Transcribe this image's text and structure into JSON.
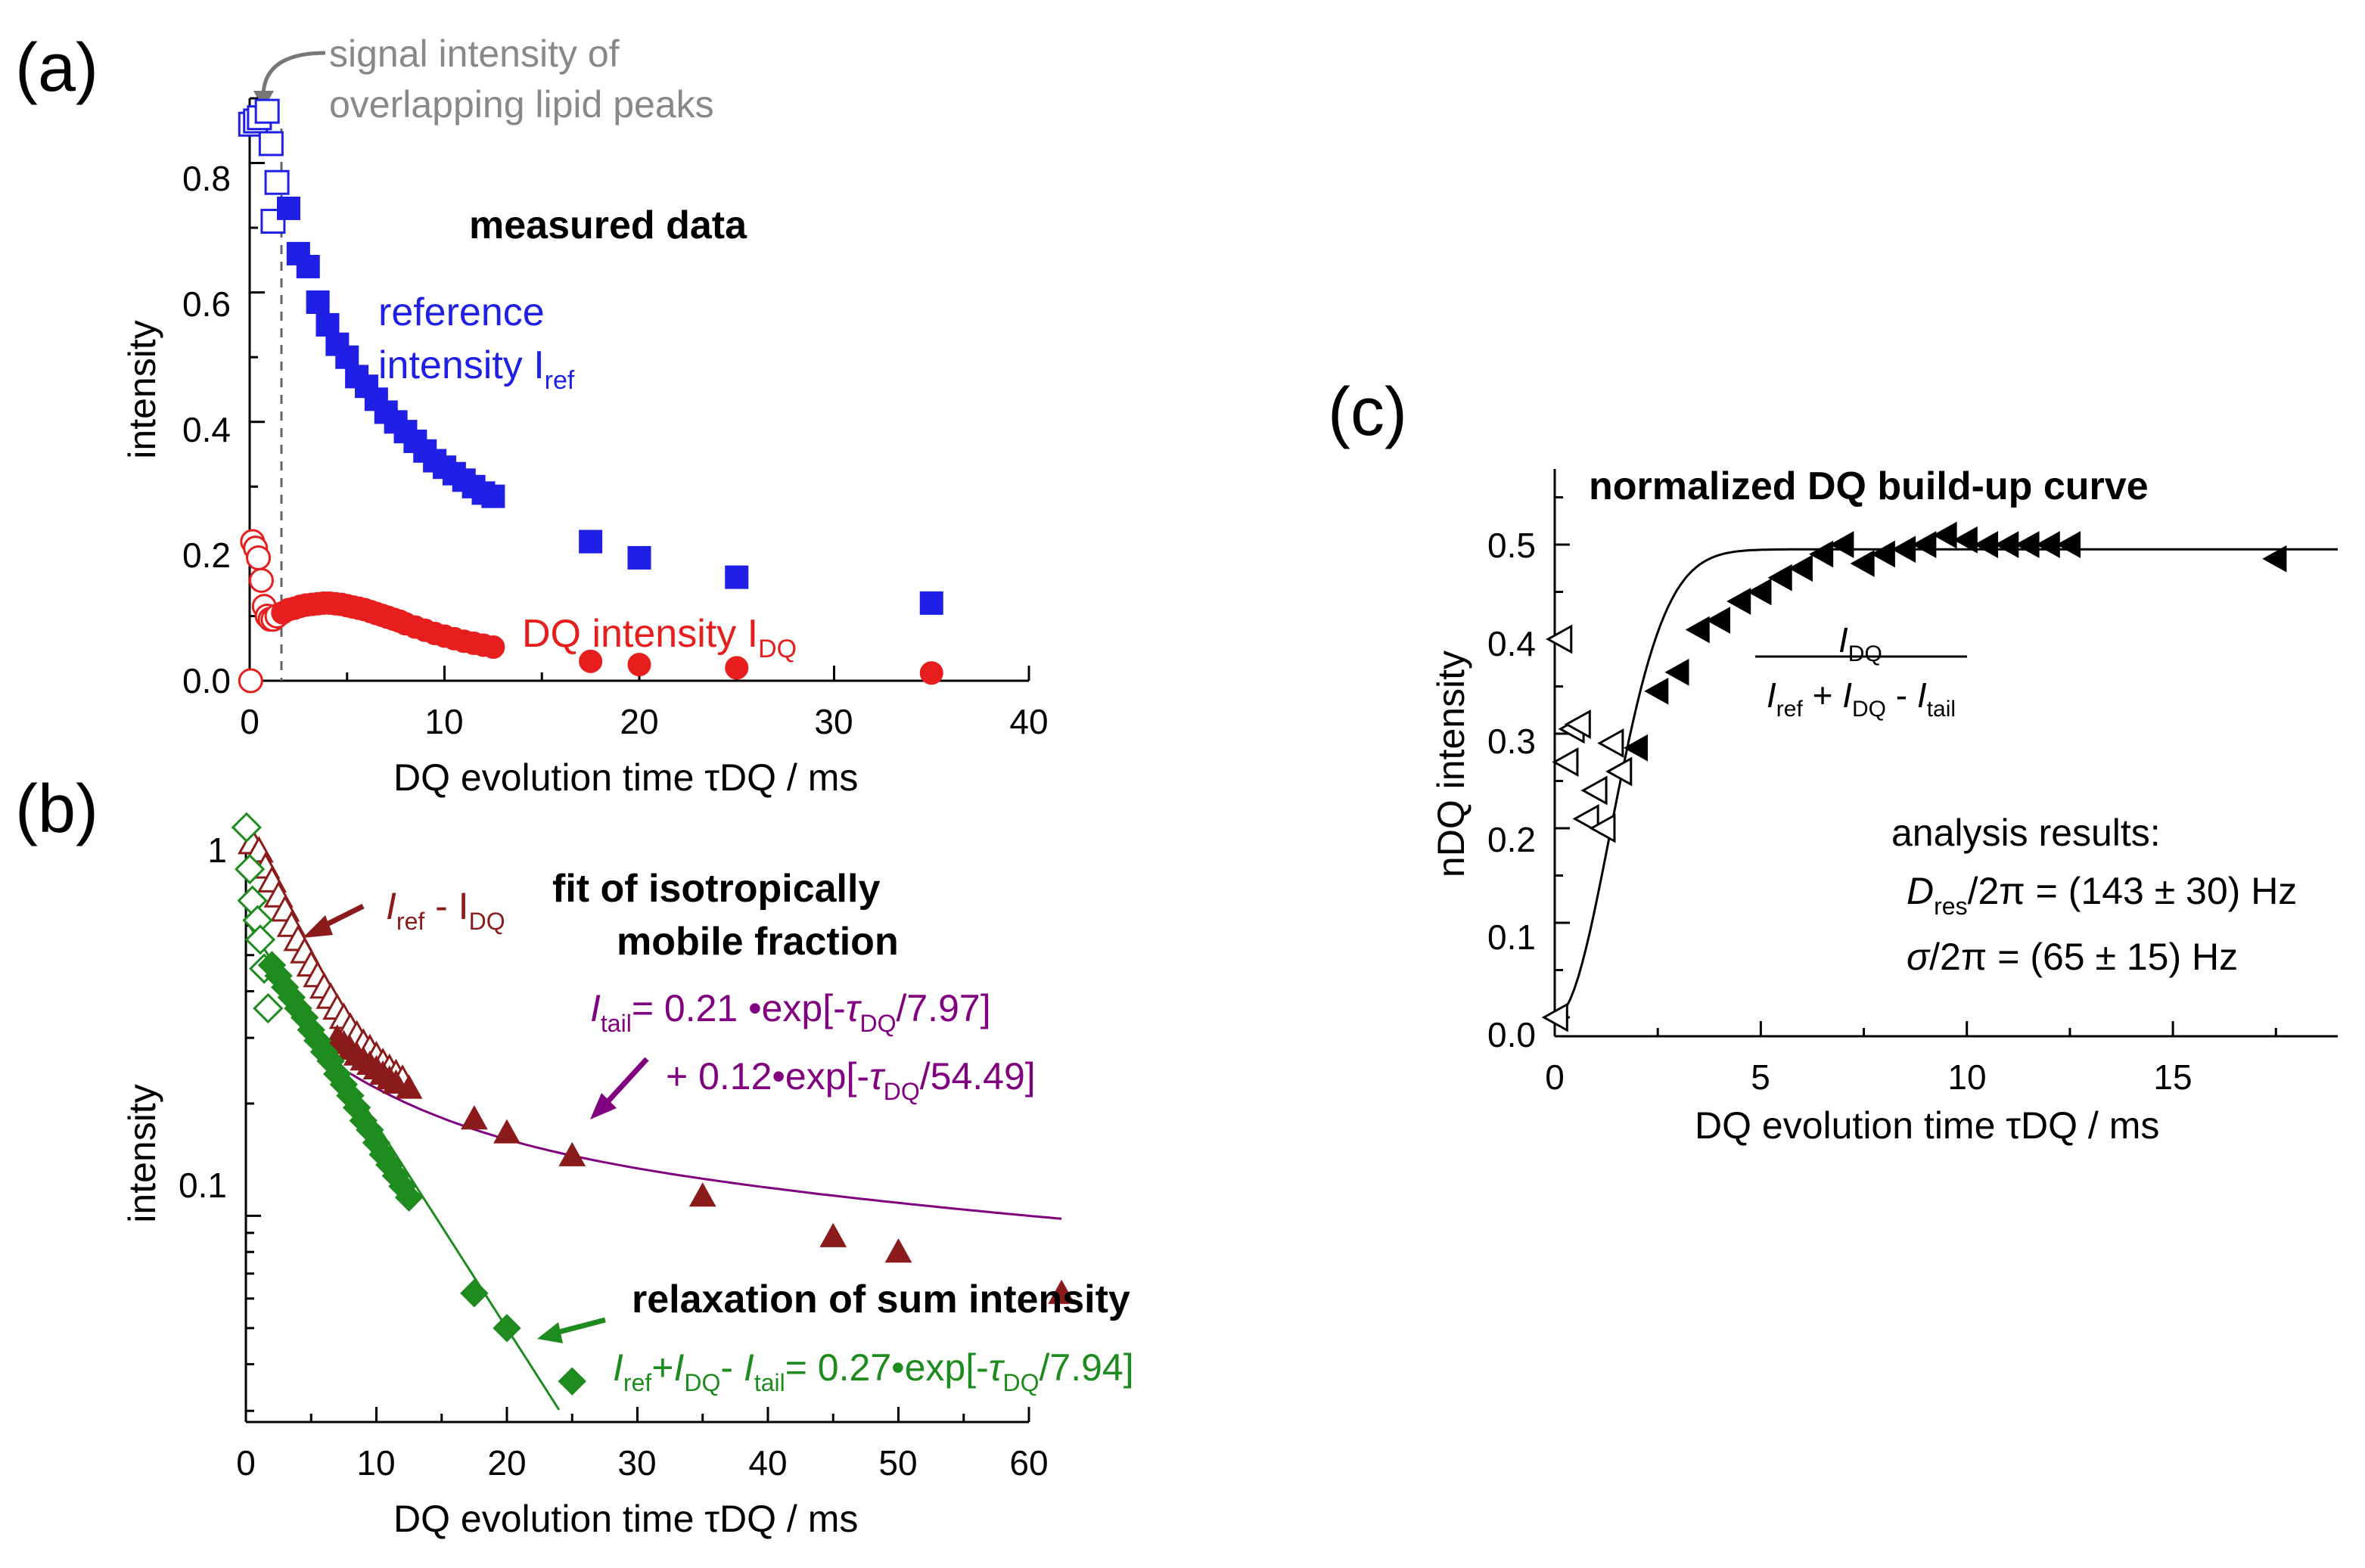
{
  "chart_data": [
    {
      "panel": "(a)",
      "type": "scatter",
      "xlabel": "DQ evolution time τDQ / ms",
      "ylabel": "intensity",
      "xlim": [
        0,
        40
      ],
      "ylim": [
        0,
        0.9
      ],
      "xticks": [
        "0",
        "10",
        "20",
        "30",
        "40"
      ],
      "yticks": [
        "0.0",
        "0.2",
        "0.4",
        "0.6",
        "0.8"
      ],
      "annotations": {
        "arrow_note_line1": "signal intensity of",
        "arrow_note_line2": "overlapping lipid peaks",
        "measured": "measured data",
        "ref_line1": "reference",
        "ref_line2": "intensity I",
        "ref_sub": "ref",
        "dq_label": "DQ intensity I",
        "dq_sub": "DQ"
      },
      "cutoff_x": 1.5,
      "series": [
        {
          "name": "Iref (excluded)",
          "color": "#1f1fe6",
          "marker": "square-open",
          "x": [
            0.05,
            0.3,
            0.5,
            0.9,
            1.1,
            1.2,
            1.4
          ],
          "y": [
            0.86,
            0.865,
            0.87,
            0.88,
            0.83,
            0.71,
            0.77
          ]
        },
        {
          "name": "Iref",
          "color": "#1f1fe6",
          "marker": "square",
          "x": [
            2,
            2.5,
            3,
            3.5,
            4,
            4.5,
            5,
            5.5,
            6,
            6.5,
            7,
            7.5,
            8,
            8.5,
            9,
            9.5,
            10,
            10.5,
            11,
            11.5,
            12,
            12.5,
            17.5,
            20,
            25,
            35
          ],
          "y": [
            0.73,
            0.66,
            0.64,
            0.585,
            0.55,
            0.52,
            0.5,
            0.47,
            0.455,
            0.435,
            0.415,
            0.4,
            0.385,
            0.37,
            0.355,
            0.34,
            0.33,
            0.32,
            0.31,
            0.3,
            0.29,
            0.285,
            0.215,
            0.19,
            0.16,
            0.12
          ]
        },
        {
          "name": "IDQ (excluded)",
          "color": "#e61e1e",
          "marker": "circle-open",
          "x": [
            0.05,
            0.15,
            0.3,
            0.45,
            0.6,
            0.75,
            0.9,
            1.05,
            1.2,
            1.4
          ],
          "y": [
            0.0,
            0.215,
            0.205,
            0.19,
            0.155,
            0.115,
            0.1,
            0.095,
            0.095,
            0.1
          ]
        },
        {
          "name": "IDQ",
          "color": "#e61e1e",
          "marker": "circle",
          "x": [
            1.7,
            2,
            2.3,
            2.6,
            2.9,
            3.2,
            3.5,
            3.8,
            4.1,
            4.4,
            4.7,
            5,
            5.3,
            5.6,
            5.9,
            6.2,
            6.5,
            6.8,
            7.1,
            7.4,
            7.7,
            8,
            8.5,
            9,
            9.5,
            10,
            10.5,
            11,
            11.5,
            12,
            12.5,
            17.5,
            20,
            25,
            35
          ],
          "y": [
            0.105,
            0.11,
            0.112,
            0.115,
            0.117,
            0.118,
            0.119,
            0.12,
            0.12,
            0.119,
            0.118,
            0.116,
            0.114,
            0.112,
            0.11,
            0.107,
            0.104,
            0.101,
            0.098,
            0.095,
            0.092,
            0.088,
            0.083,
            0.078,
            0.073,
            0.069,
            0.065,
            0.061,
            0.058,
            0.055,
            0.052,
            0.03,
            0.025,
            0.02,
            0.012
          ]
        }
      ]
    },
    {
      "panel": "(b)",
      "type": "scatter",
      "yscale": "log",
      "xlabel": "DQ evolution time τDQ / ms",
      "ylabel": "intensity",
      "xlim": [
        0,
        60
      ],
      "ylim": [
        0.028,
        1.12
      ],
      "xticks": [
        "0",
        "10",
        "20",
        "30",
        "40",
        "50",
        "60"
      ],
      "ytick_labels": {
        "one": "1",
        "tenth": "0.1"
      },
      "annotations": {
        "diff_label": "I",
        "diff_sub1": "ref",
        "diff_mid": " - I",
        "diff_sub2": "DQ",
        "fit_title1": "fit of isotropically",
        "fit_title2": "mobile fraction",
        "tail_I": "I",
        "tail_sub": "tail",
        "tail_eq1": "=  0.21 •exp[-",
        "tau": "τ",
        "tau_sub": "DQ",
        "tail_eq1_end": "/7.97]",
        "tail_eq2": "+ 0.12•exp[-",
        "tail_eq2_end": "/54.49]",
        "relax_title": "relaxation of sum intensity",
        "sum_I1": "I",
        "sum_sub1": "ref",
        "sum_plus": "+",
        "sum_I2": "I",
        "sum_sub2": "DQ",
        "sum_minus": "- ",
        "sum_I3": "I",
        "sum_sub3": "tail",
        "sum_eq": "= 0.27•exp[-",
        "sum_eq_end": "/7.94]"
      },
      "series": [
        {
          "name": "Iref - IDQ (excluded)",
          "color": "#8b1a1a",
          "marker": "triangle-up-open",
          "x": [
            0.5,
            1,
            1.5,
            2,
            2.5,
            3,
            3.5,
            4,
            4.5,
            5,
            5.5,
            6,
            6.5,
            7,
            7.5,
            8,
            8.5,
            9,
            9.5,
            10,
            10.5,
            11,
            11.5,
            12
          ],
          "y": [
            1.0,
            0.95,
            0.86,
            0.79,
            0.72,
            0.66,
            0.6,
            0.55,
            0.51,
            0.47,
            0.44,
            0.41,
            0.385,
            0.36,
            0.34,
            0.32,
            0.305,
            0.29,
            0.28,
            0.268,
            0.257,
            0.248,
            0.24,
            0.232
          ]
        },
        {
          "name": "Iref - IDQ",
          "color": "#8b1a1a",
          "marker": "triangle-up",
          "x": [
            7,
            7.5,
            8,
            8.5,
            9,
            9.5,
            10,
            10.5,
            11,
            11.5,
            12.5,
            17.5,
            20,
            25,
            35,
            45,
            50,
            62.5
          ],
          "y": [
            0.3,
            0.29,
            0.28,
            0.27,
            0.262,
            0.255,
            0.248,
            0.24,
            0.233,
            0.227,
            0.22,
            0.182,
            0.167,
            0.145,
            0.113,
            0.088,
            0.08,
            0.062
          ]
        },
        {
          "name": "sum (excluded)",
          "color": "#1e8b1e",
          "marker": "diamond-open",
          "x": [
            0.05,
            0.3,
            0.5,
            0.9,
            1.1,
            1.4,
            1.7
          ],
          "y": [
            1.1,
            0.85,
            0.7,
            0.62,
            0.55,
            0.46,
            0.36
          ]
        },
        {
          "name": "Iref + IDQ - Itail",
          "color": "#1e8b1e",
          "marker": "diamond",
          "x": [
            2,
            2.5,
            3,
            3.5,
            4,
            4.5,
            5,
            5.5,
            6,
            6.5,
            7,
            7.5,
            8,
            8.5,
            9,
            9.5,
            10,
            10.5,
            11,
            11.5,
            12,
            12.5,
            17.5,
            20,
            25
          ],
          "y": [
            0.47,
            0.44,
            0.41,
            0.385,
            0.36,
            0.34,
            0.315,
            0.295,
            0.275,
            0.26,
            0.24,
            0.225,
            0.21,
            0.195,
            0.18,
            0.17,
            0.157,
            0.146,
            0.137,
            0.128,
            0.12,
            0.112,
            0.062,
            0.05,
            0.036
          ]
        }
      ],
      "fits": [
        {
          "name": "tail fit",
          "color": "#800080",
          "a1": 0.21,
          "t1": 7.97,
          "a2": 0.12,
          "t2": 54.49,
          "xrange": [
            7,
            62.5
          ]
        },
        {
          "name": "sum fit",
          "color": "#1e8b1e",
          "a1": 0.27,
          "t1": 7.94,
          "xrange": [
            0,
            24
          ]
        }
      ]
    },
    {
      "panel": "(c)",
      "type": "scatter",
      "xlabel": "DQ evolution time τDQ / ms",
      "ylabel": "nDQ intensity",
      "xlim": [
        0,
        19
      ],
      "ylim": [
        -0.02,
        0.58
      ],
      "xticks": [
        "0",
        "5",
        "10",
        "15"
      ],
      "yticks": [
        "0.0",
        "0.1",
        "0.2",
        "0.3",
        "0.4",
        "0.5"
      ],
      "annotations": {
        "title": "normalized DQ build-up curve",
        "frac_num_I": "I",
        "frac_num_sub": "DQ",
        "frac_den_I1": "I",
        "frac_den_sub1": "ref",
        "frac_den_plus": " + ",
        "frac_den_I2": "I",
        "frac_den_sub2": "DQ",
        "frac_den_minus": " - ",
        "frac_den_I3": "I",
        "frac_den_sub3": "tail",
        "results_title": "analysis results:",
        "dres_D": "D",
        "dres_sub": "res",
        "dres_rest": "/2π = (143 ± 30) Hz",
        "sigma_s": "σ",
        "sigma_rest": "/2π   =  (65 ± 15) Hz"
      },
      "series": [
        {
          "name": "nDQ (excluded)",
          "color": "#000000",
          "marker": "triangle-left-open",
          "x": [
            0.05,
            0.15,
            0.3,
            0.45,
            0.6,
            0.8,
            1.0,
            1.2,
            1.4,
            1.6
          ],
          "y": [
            0.0,
            0.4,
            0.27,
            0.305,
            0.31,
            0.21,
            0.24,
            0.2,
            0.29,
            0.26
          ]
        },
        {
          "name": "nDQ",
          "color": "#000000",
          "marker": "triangle-left",
          "x": [
            2,
            2.5,
            3,
            3.5,
            4,
            4.5,
            5,
            5.5,
            6,
            6.5,
            7,
            7.5,
            8,
            8.5,
            9,
            9.5,
            10,
            10.5,
            11,
            11.5,
            12,
            12.5,
            17.5
          ],
          "y": [
            0.285,
            0.345,
            0.365,
            0.41,
            0.42,
            0.44,
            0.45,
            0.465,
            0.475,
            0.49,
            0.5,
            0.48,
            0.49,
            0.495,
            0.5,
            0.51,
            0.505,
            0.5,
            0.5,
            0.5,
            0.5,
            0.5,
            0.485
          ]
        }
      ],
      "fit": {
        "name": "build-up fit",
        "color": "#000000",
        "plateau": 0.495,
        "t0": 1.9,
        "xrange": [
          0,
          19
        ]
      }
    }
  ]
}
